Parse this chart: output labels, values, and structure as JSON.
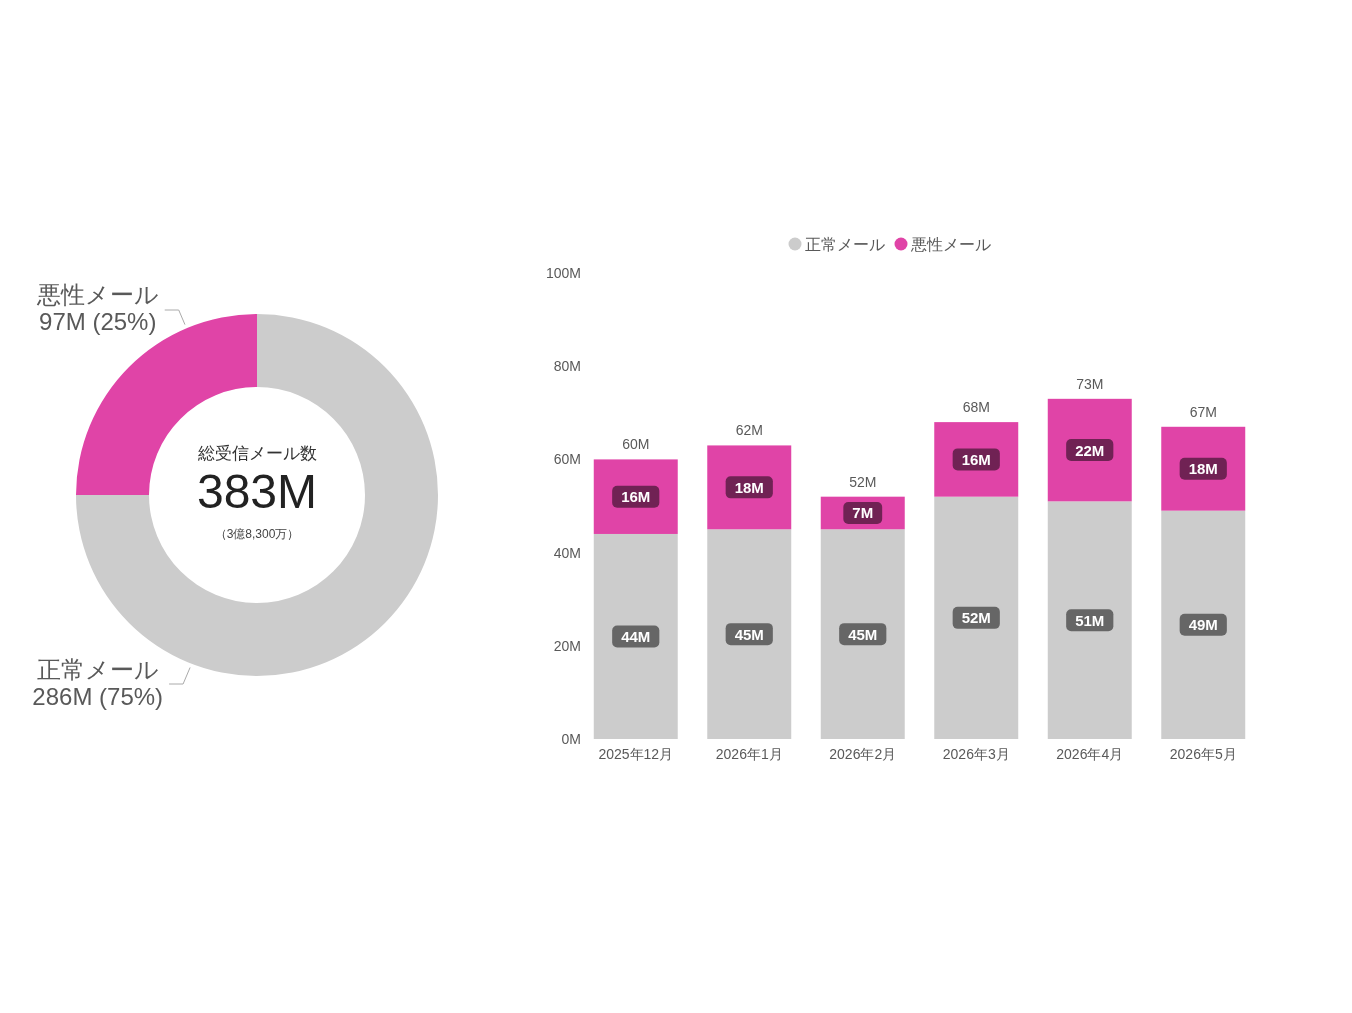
{
  "chart_data": [
    {
      "type": "donut",
      "categories": [
        "正常メール",
        "悪性メール"
      ],
      "values": [
        75,
        25
      ],
      "colors": [
        "#cccccc",
        "#e044a7"
      ],
      "value_labels": [
        "286M (75%)",
        "97M (25%)"
      ],
      "annotations": [
        "総受信メール数",
        "383M",
        "（3億8,300万）"
      ]
    },
    {
      "type": "bar",
      "stacked": true,
      "categories": [
        "2025年12月",
        "2026年1月",
        "2026年2月",
        "2026年3月",
        "2026年4月",
        "2026年5月"
      ],
      "series": [
        {
          "name": "正常メール",
          "color": "#cccccc",
          "values": [
            44,
            45,
            45,
            52,
            51,
            49
          ],
          "value_labels": [
            "44M",
            "45M",
            "45M",
            "52M",
            "51M",
            "49M"
          ]
        },
        {
          "name": "悪性メール",
          "color": "#e044a7",
          "values": [
            16,
            18,
            7,
            16,
            22,
            18
          ],
          "value_labels": [
            "16M",
            "18M",
            "7M",
            "16M",
            "22M",
            "18M"
          ]
        }
      ],
      "totals": [
        "60M",
        "62M",
        "52M",
        "68M",
        "73M",
        "67M"
      ],
      "ylim": [
        0,
        100
      ],
      "yticks": [
        {
          "value": 0,
          "label": "0M"
        },
        {
          "value": 20,
          "label": "20M"
        },
        {
          "value": 40,
          "label": "40M"
        },
        {
          "value": 60,
          "label": "60M"
        },
        {
          "value": 80,
          "label": "80M"
        },
        {
          "value": 100,
          "label": "100M"
        }
      ],
      "legend": "top"
    }
  ]
}
